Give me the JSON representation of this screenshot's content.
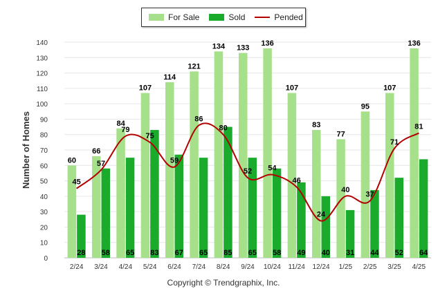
{
  "legend": {
    "for_sale": "For Sale",
    "sold": "Sold",
    "pended": "Pended"
  },
  "copyright": "Copyright © Trendgraphix, Inc.",
  "colors": {
    "for_sale": "#a6e08a",
    "sold": "#1aab2c",
    "pended": "#b30000",
    "grid": "#e6e6e6",
    "axis_text": "#333333"
  },
  "chart_data": {
    "type": "bar",
    "ylabel": "Number of Homes",
    "xlabel": "",
    "ylim": [
      0,
      140
    ],
    "yticks": [
      0,
      10,
      20,
      30,
      40,
      50,
      60,
      70,
      80,
      90,
      100,
      110,
      120,
      130,
      140
    ],
    "grid": true,
    "legend_position": "top-center",
    "categories": [
      "2/24",
      "3/24",
      "4/24",
      "5/24",
      "6/24",
      "7/24",
      "8/24",
      "9/24",
      "10/24",
      "11/24",
      "12/24",
      "1/25",
      "2/25",
      "3/25",
      "4/25"
    ],
    "series": [
      {
        "name": "For Sale",
        "type": "bar",
        "values": [
          60,
          66,
          84,
          107,
          114,
          121,
          134,
          133,
          136,
          107,
          83,
          77,
          95,
          107,
          136
        ]
      },
      {
        "name": "Sold",
        "type": "bar",
        "values": [
          28,
          58,
          65,
          83,
          67,
          65,
          85,
          65,
          58,
          49,
          40,
          31,
          44,
          52,
          64
        ]
      },
      {
        "name": "Pended",
        "type": "line",
        "values": [
          45,
          57,
          79,
          75,
          59,
          86,
          80,
          52,
          54,
          46,
          24,
          40,
          37,
          71,
          81
        ]
      }
    ]
  }
}
